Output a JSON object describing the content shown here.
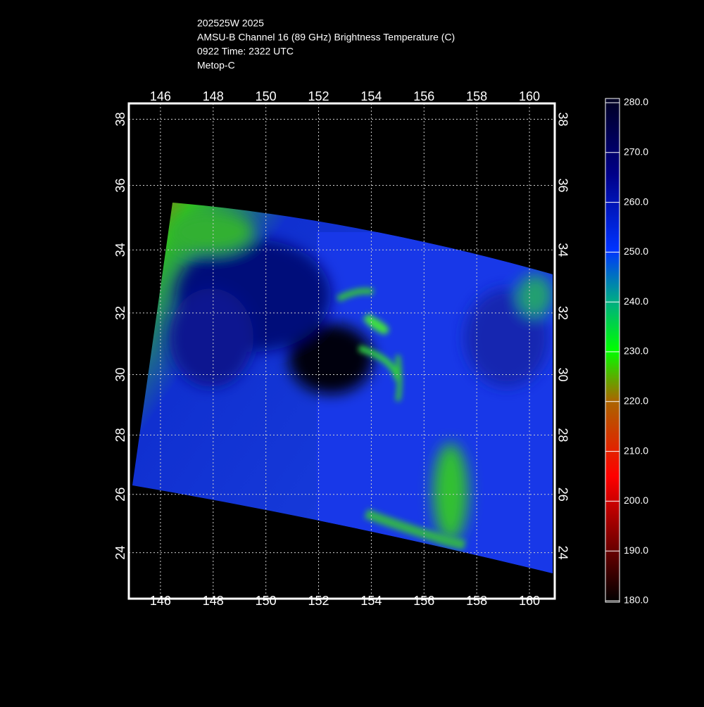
{
  "header": {
    "lines": [
      "202525W 2025",
      "AMSU-B Channel 16 (89 GHz) Brightness Temperature (C)",
      "0922 Time: 2322 UTC",
      "Metop-C"
    ]
  },
  "map": {
    "xlim": [
      144.8,
      160.96
    ],
    "ylim": [
      22.4,
      38.47
    ],
    "xticks": [
      146,
      148,
      150,
      152,
      154,
      156,
      158,
      160
    ],
    "yticks": [
      24,
      26,
      28,
      30,
      32,
      34,
      36,
      38
    ],
    "grid": true
  },
  "colorbar": {
    "lim": [
      180,
      280
    ],
    "ticks": [
      {
        "value": 280,
        "label": "280.0"
      },
      {
        "value": 270,
        "label": "270.0"
      },
      {
        "value": 260,
        "label": "260.0"
      },
      {
        "value": 250,
        "label": "250.0"
      },
      {
        "value": 240,
        "label": "240.0"
      },
      {
        "value": 230,
        "label": "230.0"
      },
      {
        "value": 220,
        "label": "220.0"
      },
      {
        "value": 210,
        "label": "210.0"
      },
      {
        "value": 200,
        "label": "200.0"
      },
      {
        "value": 190,
        "label": "190.0"
      },
      {
        "value": 180,
        "label": "180.0"
      }
    ]
  }
}
